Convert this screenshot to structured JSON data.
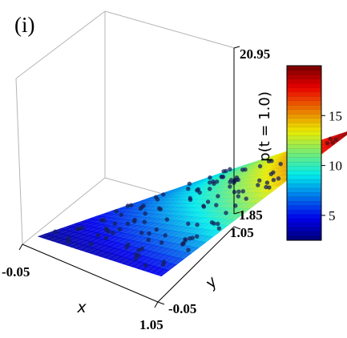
{
  "chart_data": {
    "type": "surface3d",
    "panel_label": "(i)",
    "zlabel": "p(t = 1.0)",
    "xlabel": "x",
    "ylabel": "y",
    "x_range": [
      -0.05,
      1.05
    ],
    "y_range": [
      -0.05,
      1.05
    ],
    "z_range": [
      1.85,
      20.95
    ],
    "x_ticks": [
      "-0.05",
      "1.05"
    ],
    "y_ticks": [
      "1.05",
      "-0.05"
    ],
    "z_ticks": [
      "20.95",
      "1.85"
    ],
    "surface_corners": [
      {
        "x": 0.0,
        "y": 0.0,
        "z": 3.0
      },
      {
        "x": 1.0,
        "y": 0.0,
        "z": 4.5
      },
      {
        "x": 0.0,
        "y": 1.0,
        "z": 9.0
      },
      {
        "x": 1.0,
        "y": 1.0,
        "z": 20.0
      }
    ],
    "colorbar": {
      "colormap": "jet",
      "min": 2.5,
      "max": 20.0,
      "ticks": [
        5,
        10,
        15
      ]
    }
  }
}
